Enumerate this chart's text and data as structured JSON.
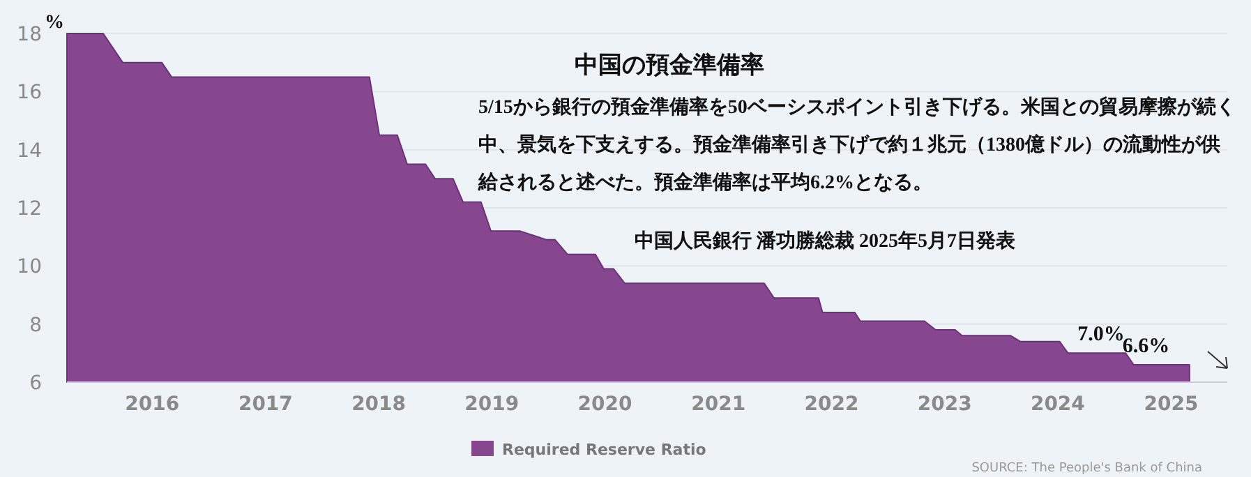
{
  "chart_data": {
    "type": "area",
    "title": "中国の預金準備率",
    "subtitle": "5/15から銀行の預金準備率を50ベーシスポイント引き下げる。米国との貿易摩擦が続く中、景気を下支えする。預金準備率引き下げで約１兆元（1380億ドル）の流動性が供給されると述べた。預金準備率は平均6.2%となる。",
    "ylabel": "%",
    "annotations": [
      "中国人民銀行  潘功勝総裁   2025年5月7日発表",
      "SOURCE: The People's Bank of China",
      {
        "text": "7.0%",
        "x": "2024-05-20",
        "y": 7.0
      },
      {
        "text": "6.6%",
        "x": "2024-10-12",
        "y": 6.6
      }
    ],
    "x": [
      "2015-04-01",
      "2015-07-27",
      "2015-09-28",
      "2016-02-01",
      "2016-03-04",
      "2017-12-02",
      "2018-01-03",
      "2018-03-02",
      "2018-04-03",
      "2018-06-01",
      "2018-07-02",
      "2018-08-29",
      "2018-09-30",
      "2018-11-27",
      "2018-12-29",
      "2019-04-02",
      "2019-06-27",
      "2019-07-24",
      "2019-09-02",
      "2019-12-01",
      "2019-12-28",
      "2020-01-29",
      "2020-03-05",
      "2021-05-29",
      "2021-06-29",
      "2021-11-20",
      "2021-12-03",
      "2022-03-17",
      "2022-04-04",
      "2022-10-28",
      "2022-12-03",
      "2023-02-04",
      "2023-02-26",
      "2023-08-02",
      "2023-09-02",
      "2024-01-07",
      "2024-02-03",
      "2024-08-07",
      "2024-09-02",
      "2025-03-01"
    ],
    "series": [
      {
        "name": "Required Reserve Ratio",
        "color": "#86478f",
        "values": [
          18,
          18,
          17,
          17,
          16.5,
          16.5,
          14.5,
          14.5,
          13.5,
          13.5,
          13,
          13,
          12.2,
          12.2,
          11.2,
          11.2,
          10.9,
          10.9,
          10.4,
          10.4,
          9.9,
          9.9,
          9.4,
          9.4,
          8.9,
          8.9,
          8.4,
          8.4,
          8.1,
          8.1,
          7.8,
          7.8,
          7.6,
          7.6,
          7.4,
          7.4,
          7.0,
          7.0,
          6.6,
          6.6
        ]
      }
    ],
    "xlim": [
      "2015-04-01",
      "2025-07-01"
    ],
    "xticks": [
      {
        "value": "2016-01-01",
        "label": "2016"
      },
      {
        "value": "2017-01-01",
        "label": "2017"
      },
      {
        "value": "2018-01-01",
        "label": "2018"
      },
      {
        "value": "2019-01-01",
        "label": "2019"
      },
      {
        "value": "2020-01-01",
        "label": "2020"
      },
      {
        "value": "2021-01-01",
        "label": "2021"
      },
      {
        "value": "2022-01-01",
        "label": "2022"
      },
      {
        "value": "2023-01-01",
        "label": "2023"
      },
      {
        "value": "2024-01-01",
        "label": "2024"
      },
      {
        "value": "2025-01-01",
        "label": "2025"
      }
    ],
    "ylim": [
      6,
      18
    ],
    "yticks": [
      6,
      8,
      10,
      12,
      14,
      16,
      18
    ],
    "grid": "y",
    "legend": "bottom left"
  }
}
